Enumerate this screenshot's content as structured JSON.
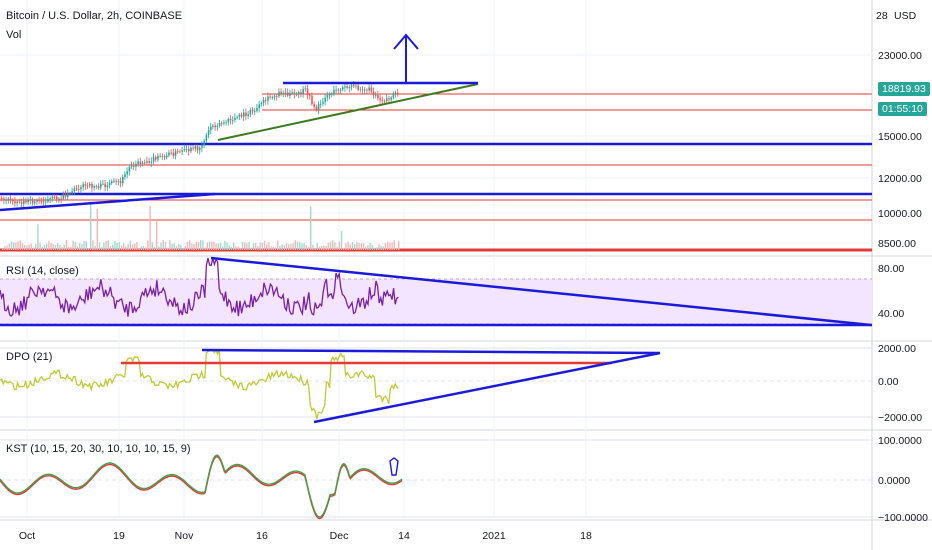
{
  "chart_data": {
    "type": "line",
    "header": {
      "symbol": "Bitcoin / U.S. Dollar, 2h, COINBASE",
      "volume_label": "Vol",
      "currency": "USD",
      "currency_prefix": "28"
    },
    "x_ticks": [
      "Oct",
      "19",
      "Nov",
      "16",
      "Dec",
      "14",
      "2021",
      "18"
    ],
    "main_pane": {
      "y_ticks": [
        "23000.00",
        "15000.00",
        "12000.00",
        "10000.00",
        "8500.00"
      ],
      "last_price": "18819.93",
      "countdown": "01:55:10",
      "colors": {
        "up": "#26a69a",
        "down": "#ef5350",
        "volume_up": "#a3d8d2",
        "volume_down": "#f4b7b5",
        "trendline_blue": "#1a1adb",
        "trendline_green": "#3d7a1f",
        "level_red": "#e53935"
      }
    },
    "indicators": [
      {
        "id": "rsi",
        "label": "RSI (14, close)",
        "color": "#7b1fa2",
        "fill": "#f3e5ff",
        "y_ticks": [
          "80.00",
          "40.00"
        ]
      },
      {
        "id": "dpo",
        "label": "DPO (21)",
        "color": "#c0ca33",
        "y_ticks": [
          "2000.00",
          "0.00",
          "−2000.00"
        ]
      },
      {
        "id": "kst",
        "label": "KST (10, 15, 20, 30, 10, 10, 10, 15, 9)",
        "color": "#43a047",
        "signal_color": "#e53935",
        "y_ticks": [
          "100.0000",
          "0.0000",
          "−100.0000"
        ]
      }
    ]
  }
}
